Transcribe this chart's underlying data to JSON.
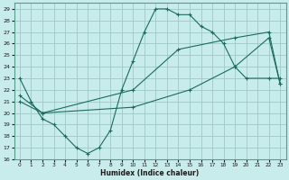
{
  "xlabel": "Humidex (Indice chaleur)",
  "background_color": "#c8ecec",
  "grid_color": "#a0c8c8",
  "line_color": "#1a6b5a",
  "xlim": [
    -0.5,
    23.5
  ],
  "ylim": [
    16,
    29.5
  ],
  "xticks": [
    0,
    1,
    2,
    3,
    4,
    5,
    6,
    7,
    8,
    9,
    10,
    11,
    12,
    13,
    14,
    15,
    16,
    17,
    18,
    19,
    20,
    21,
    22,
    23
  ],
  "yticks": [
    16,
    17,
    18,
    19,
    20,
    21,
    22,
    23,
    24,
    25,
    26,
    27,
    28,
    29
  ],
  "line1_x": [
    0,
    1,
    2,
    3,
    4,
    5,
    6,
    7,
    8,
    9,
    10,
    11,
    12,
    13,
    14,
    15,
    16,
    17,
    18,
    19,
    20,
    22,
    23
  ],
  "line1_y": [
    23,
    21,
    19.5,
    19,
    18,
    17,
    16.5,
    17,
    18.5,
    22,
    24.5,
    27,
    29,
    29,
    28.5,
    28.5,
    27.5,
    27,
    26,
    24,
    23,
    23,
    23
  ],
  "line2_x": [
    0,
    2,
    10,
    15,
    19,
    22,
    23
  ],
  "line2_y": [
    21,
    20,
    20.5,
    22,
    24,
    26.5,
    22.5
  ],
  "line3_x": [
    0,
    2,
    10,
    14,
    19,
    22,
    23
  ],
  "line3_y": [
    21.5,
    20,
    22,
    25.5,
    26.5,
    27,
    22.5
  ]
}
